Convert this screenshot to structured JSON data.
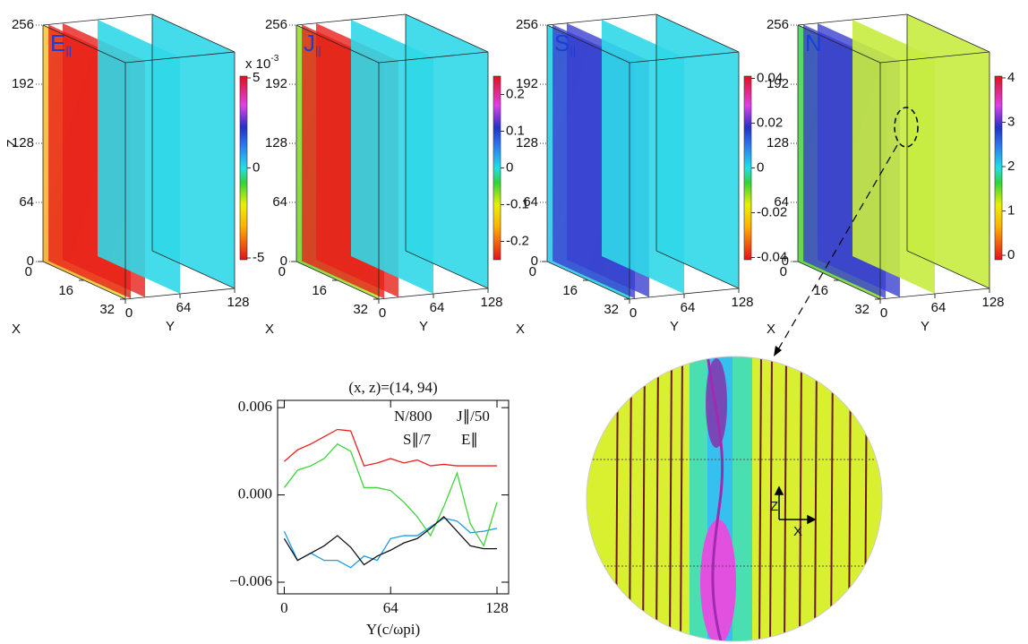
{
  "axes3d": {
    "zlabel": "Z",
    "xlabel": "X",
    "ylabel": "Y",
    "zticks": [
      0,
      64,
      128,
      192,
      256
    ],
    "xticks": [
      0,
      16,
      32
    ],
    "yticks": [
      0,
      64,
      128
    ]
  },
  "panels": [
    {
      "symbol": "E",
      "subscript": "||",
      "multiplier": "x 10",
      "exponent": "-3",
      "colorbar": {
        "lim": [
          -5.1,
          5.1
        ],
        "ticks": [
          5,
          0,
          -5
        ]
      }
    },
    {
      "symbol": "J",
      "subscript": "||",
      "colorbar": {
        "lim": [
          -0.25,
          0.25
        ],
        "ticks": [
          0.2,
          0.1,
          0,
          -0.1,
          -0.2
        ]
      }
    },
    {
      "symbol": "S",
      "subscript": "||",
      "colorbar": {
        "lim": [
          -0.041,
          0.041
        ],
        "ticks": [
          0.04,
          0.02,
          0,
          -0.02,
          -0.04
        ]
      }
    },
    {
      "symbol": "N",
      "colorbar": {
        "lim": [
          -0.1,
          4.04
        ],
        "ticks": [
          4,
          3,
          2,
          1,
          0
        ]
      }
    }
  ],
  "inset": {
    "zlabel": "Z",
    "xlabel": "X"
  },
  "chart_data": {
    "type": "line",
    "title": "(x,  z)=(14,  94)",
    "xlabel": "Y(c/ωpi)",
    "x": [
      0,
      8,
      16,
      24,
      32,
      40,
      48,
      56,
      64,
      72,
      80,
      88,
      96,
      104,
      112,
      120,
      128
    ],
    "xlim": [
      -4,
      135
    ],
    "xticks": [
      0,
      64,
      128
    ],
    "ylim": [
      -0.0068,
      0.0065
    ],
    "yticks": [
      {
        "value": -0.006,
        "label": "−0.006"
      },
      {
        "value": 0,
        "label": "0.000"
      },
      {
        "value": 0.006,
        "label": "0.006"
      }
    ],
    "series": [
      {
        "name": "N/800",
        "color": "#e8231f",
        "values": [
          0.0023,
          0.0031,
          0.0035,
          0.004,
          0.0045,
          0.0044,
          0.002,
          0.0022,
          0.0025,
          0.0022,
          0.0024,
          0.002,
          0.0021,
          0.002,
          0.002,
          0.002,
          0.002
        ]
      },
      {
        "name": "J∥/50",
        "color": "#1c9be6",
        "values": [
          -0.0025,
          -0.0045,
          -0.004,
          -0.0045,
          -0.0045,
          -0.005,
          -0.0042,
          -0.0045,
          -0.003,
          -0.0028,
          -0.0028,
          -0.0022,
          -0.0016,
          -0.0018,
          -0.0026,
          -0.0025,
          -0.0023
        ]
      },
      {
        "name": "S∥/7",
        "color": "#3ed43a",
        "values": [
          0.0005,
          0.0017,
          0.002,
          0.0025,
          0.0035,
          0.003,
          0.0005,
          0.0005,
          0.0003,
          -0.0005,
          -0.0015,
          -0.0028,
          -0.0008,
          0.0015,
          -0.002,
          -0.0035,
          -0.0005
        ]
      },
      {
        "name": "E∥",
        "color": "#111111",
        "values": [
          -0.003,
          -0.0045,
          -0.004,
          -0.0035,
          -0.0028,
          -0.0036,
          -0.0048,
          -0.0042,
          -0.0038,
          -0.0033,
          -0.003,
          -0.0023,
          -0.0015,
          -0.0025,
          -0.0035,
          -0.0037,
          -0.0037
        ]
      }
    ]
  }
}
